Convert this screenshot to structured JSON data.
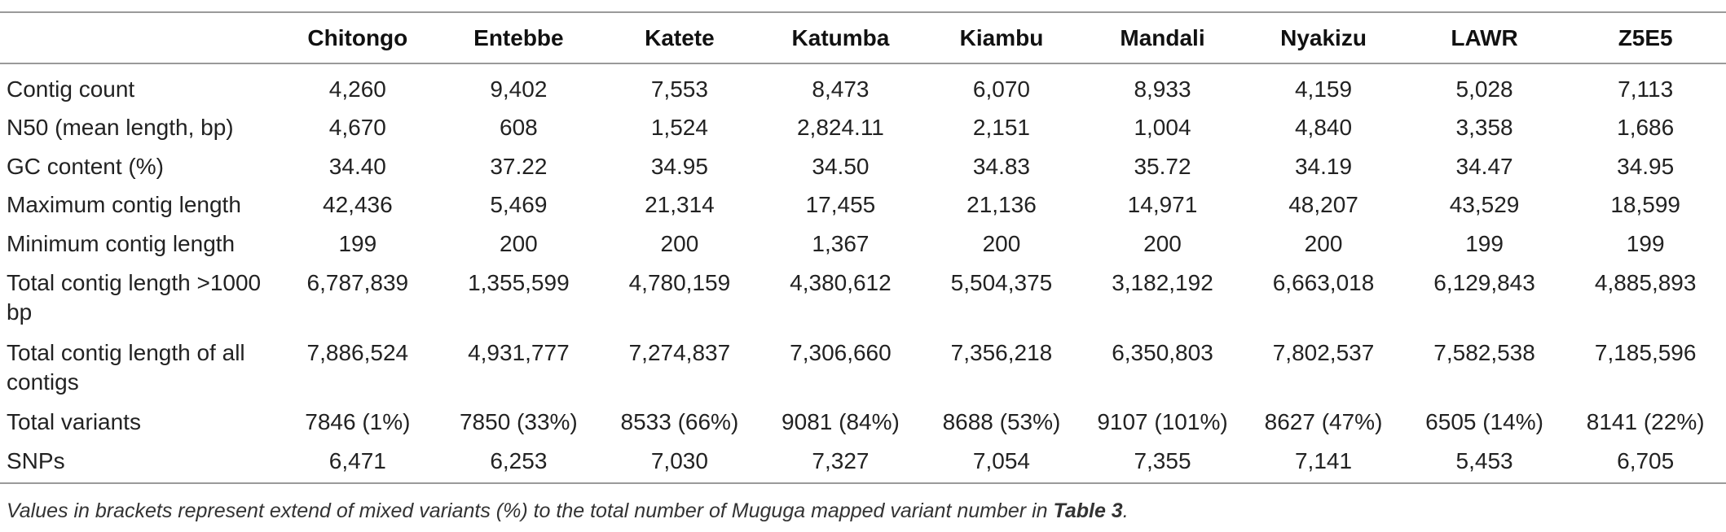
{
  "table": {
    "columns": [
      "",
      "Chitongo",
      "Entebbe",
      "Katete",
      "Katumba",
      "Kiambu",
      "Mandali",
      "Nyakizu",
      "LAWR",
      "Z5E5"
    ],
    "rows": [
      {
        "label": "Contig count",
        "values": [
          "4,260",
          "9,402",
          "7,553",
          "8,473",
          "6,070",
          "8,933",
          "4,159",
          "5,028",
          "7,113"
        ]
      },
      {
        "label": "N50 (mean length, bp)",
        "values": [
          "4,670",
          "608",
          "1,524",
          "2,824.11",
          "2,151",
          "1,004",
          "4,840",
          "3,358",
          "1,686"
        ]
      },
      {
        "label": "GC content (%)",
        "values": [
          "34.40",
          "37.22",
          "34.95",
          "34.50",
          "34.83",
          "35.72",
          "34.19",
          "34.47",
          "34.95"
        ]
      },
      {
        "label": "Maximum contig length",
        "values": [
          "42,436",
          "5,469",
          "21,314",
          "17,455",
          "21,136",
          "14,971",
          "48,207",
          "43,529",
          "18,599"
        ]
      },
      {
        "label": "Minimum contig length",
        "values": [
          "199",
          "200",
          "200",
          "1,367",
          "200",
          "200",
          "200",
          "199",
          "199"
        ]
      },
      {
        "label": "Total contig length >1000 bp",
        "values": [
          "6,787,839",
          "1,355,599",
          "4,780,159",
          "4,380,612",
          "5,504,375",
          "3,182,192",
          "6,663,018",
          "6,129,843",
          "4,885,893"
        ]
      },
      {
        "label": "Total contig length of all contigs",
        "values": [
          "7,886,524",
          "4,931,777",
          "7,274,837",
          "7,306,660",
          "7,356,218",
          "6,350,803",
          "7,802,537",
          "7,582,538",
          "7,185,596"
        ]
      },
      {
        "label": "Total variants",
        "values": [
          "7846 (1%)",
          "7850 (33%)",
          "8533 (66%)",
          "9081 (84%)",
          "8688 (53%)",
          "9107 (101%)",
          "8627 (47%)",
          "6505 (14%)",
          "8141 (22%)"
        ]
      },
      {
        "label": "SNPs",
        "values": [
          "6,471",
          "6,253",
          "7,030",
          "7,327",
          "7,054",
          "7,355",
          "7,141",
          "5,453",
          "6,705"
        ]
      }
    ]
  },
  "footnote": {
    "text": "Values in brackets represent extend of mixed variants (%) to the total number of Muguga mapped variant number in ",
    "bold_ref": "Table 3",
    "end": "."
  }
}
